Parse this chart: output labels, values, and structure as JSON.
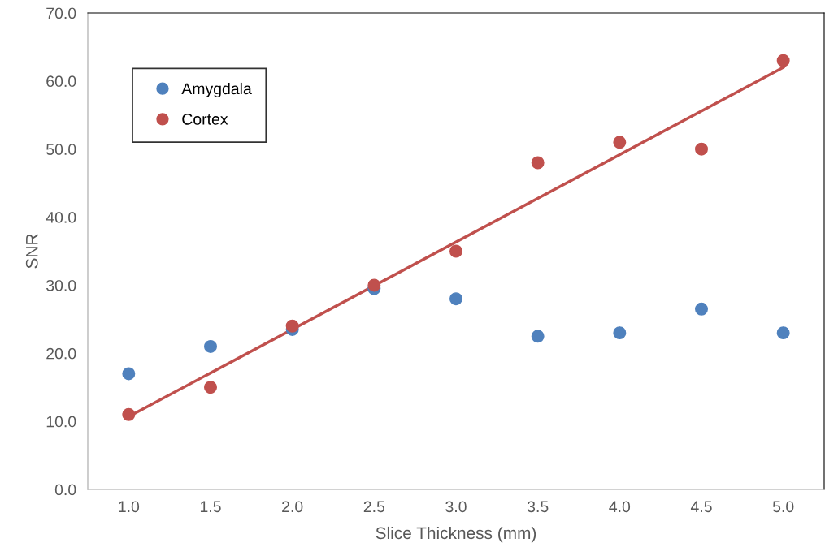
{
  "chart_data": {
    "type": "scatter",
    "xlabel": "Slice Thickness (mm)",
    "ylabel": "SNR",
    "x": [
      1.0,
      1.5,
      2.0,
      2.5,
      3.0,
      3.5,
      4.0,
      4.5,
      5.0
    ],
    "series": [
      {
        "name": "Amygdala",
        "color": "#4f81bd",
        "values": [
          17.0,
          21.0,
          23.5,
          29.5,
          28.0,
          22.5,
          23.0,
          26.5,
          23.0
        ]
      },
      {
        "name": "Cortex",
        "color": "#c0504d",
        "values": [
          11.0,
          15.0,
          24.0,
          30.0,
          35.0,
          48.0,
          51.0,
          50.0,
          63.0
        ]
      },
      {
        "type": "line",
        "marker": "none",
        "color": "#c0504d",
        "x": [
          1.0,
          5.0
        ],
        "values": [
          10.7,
          62.0
        ]
      }
    ],
    "xlim": [
      0.75,
      5.25
    ],
    "xticks": [
      {
        "value": 1,
        "label": "1.0"
      },
      {
        "value": 1.5,
        "label": "1.5"
      },
      {
        "value": 2,
        "label": "2.0"
      },
      {
        "value": 2.5,
        "label": "2.5"
      },
      {
        "value": 3,
        "label": "3.0"
      },
      {
        "value": 3.5,
        "label": "3.5"
      },
      {
        "value": 4,
        "label": "4.0"
      },
      {
        "value": 4.5,
        "label": "4.5"
      },
      {
        "value": 5,
        "label": "5.0"
      }
    ],
    "ylim": [
      0,
      70
    ],
    "yticks": [
      {
        "value": 0,
        "label": "0.0"
      },
      {
        "value": 10,
        "label": "10.0"
      },
      {
        "value": 20,
        "label": "20.0"
      },
      {
        "value": 30,
        "label": "30.0"
      },
      {
        "value": 40,
        "label": "40.0"
      },
      {
        "value": 50,
        "label": "50.0"
      },
      {
        "value": 60,
        "label": "60.0"
      },
      {
        "value": 70,
        "label": "70.0"
      }
    ],
    "marker": "circle",
    "legend": "top left",
    "grid": false
  }
}
